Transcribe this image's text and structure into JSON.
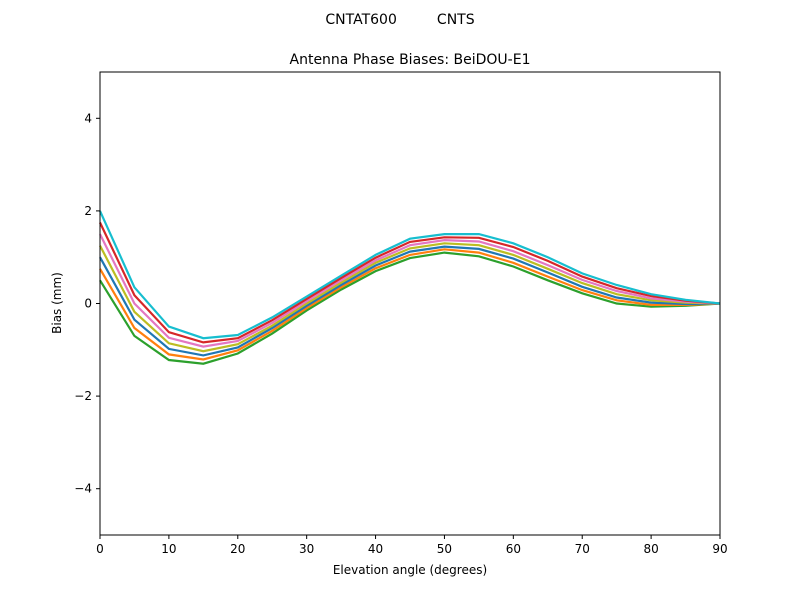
{
  "chart_data": {
    "type": "line",
    "suptitle": "CNTAT600         CNTS",
    "title": "Antenna Phase Biases: BeiDOU-E1",
    "xlabel": "Elevation angle (degrees)",
    "ylabel": "Bias (mm)",
    "xlim": [
      0,
      90
    ],
    "ylim": [
      -5,
      5
    ],
    "xticks": [
      0,
      10,
      20,
      30,
      40,
      50,
      60,
      70,
      80,
      90
    ],
    "yticks": [
      -4,
      -2,
      0,
      2,
      4
    ],
    "ytick_labels": [
      "−4",
      "−2",
      "0",
      "2",
      "4"
    ],
    "grid": false,
    "legend": "none",
    "x": [
      0,
      5,
      10,
      15,
      20,
      25,
      30,
      35,
      40,
      45,
      50,
      55,
      60,
      65,
      70,
      75,
      80,
      85,
      90
    ],
    "series": [
      {
        "color": "#2ca02c",
        "values": [
          0.5,
          -0.7,
          -1.22,
          -1.3,
          -1.08,
          -0.65,
          -0.15,
          0.3,
          0.7,
          0.98,
          1.1,
          1.02,
          0.8,
          0.5,
          0.22,
          0.0,
          -0.07,
          -0.05,
          0
        ]
      },
      {
        "color": "#ff7f0e",
        "values": [
          0.75,
          -0.53,
          -1.1,
          -1.21,
          -1.01,
          -0.59,
          -0.1,
          0.35,
          0.76,
          1.05,
          1.17,
          1.1,
          0.88,
          0.58,
          0.29,
          0.07,
          -0.03,
          -0.03,
          0
        ]
      },
      {
        "color": "#1f77b4",
        "values": [
          1.0,
          -0.35,
          -0.98,
          -1.12,
          -0.95,
          -0.53,
          -0.05,
          0.4,
          0.82,
          1.12,
          1.23,
          1.18,
          0.97,
          0.67,
          0.36,
          0.13,
          0.02,
          -0.01,
          0
        ]
      },
      {
        "color": "#bcbd22",
        "values": [
          1.25,
          -0.18,
          -0.86,
          -1.03,
          -0.88,
          -0.48,
          0.0,
          0.45,
          0.88,
          1.19,
          1.3,
          1.26,
          1.05,
          0.75,
          0.44,
          0.2,
          0.07,
          0.02,
          0
        ]
      },
      {
        "color": "#e377c2",
        "values": [
          1.5,
          0.0,
          -0.74,
          -0.93,
          -0.81,
          -0.42,
          0.05,
          0.5,
          0.93,
          1.26,
          1.37,
          1.34,
          1.13,
          0.83,
          0.51,
          0.27,
          0.11,
          0.04,
          0
        ]
      },
      {
        "color": "#d62728",
        "values": [
          1.75,
          0.18,
          -0.62,
          -0.84,
          -0.75,
          -0.36,
          0.1,
          0.55,
          0.99,
          1.33,
          1.43,
          1.42,
          1.22,
          0.92,
          0.58,
          0.33,
          0.16,
          0.06,
          0
        ]
      },
      {
        "color": "#17becf",
        "values": [
          2.0,
          0.35,
          -0.5,
          -0.75,
          -0.68,
          -0.3,
          0.15,
          0.6,
          1.05,
          1.4,
          1.5,
          1.5,
          1.3,
          1.0,
          0.65,
          0.4,
          0.2,
          0.08,
          0
        ]
      }
    ]
  }
}
